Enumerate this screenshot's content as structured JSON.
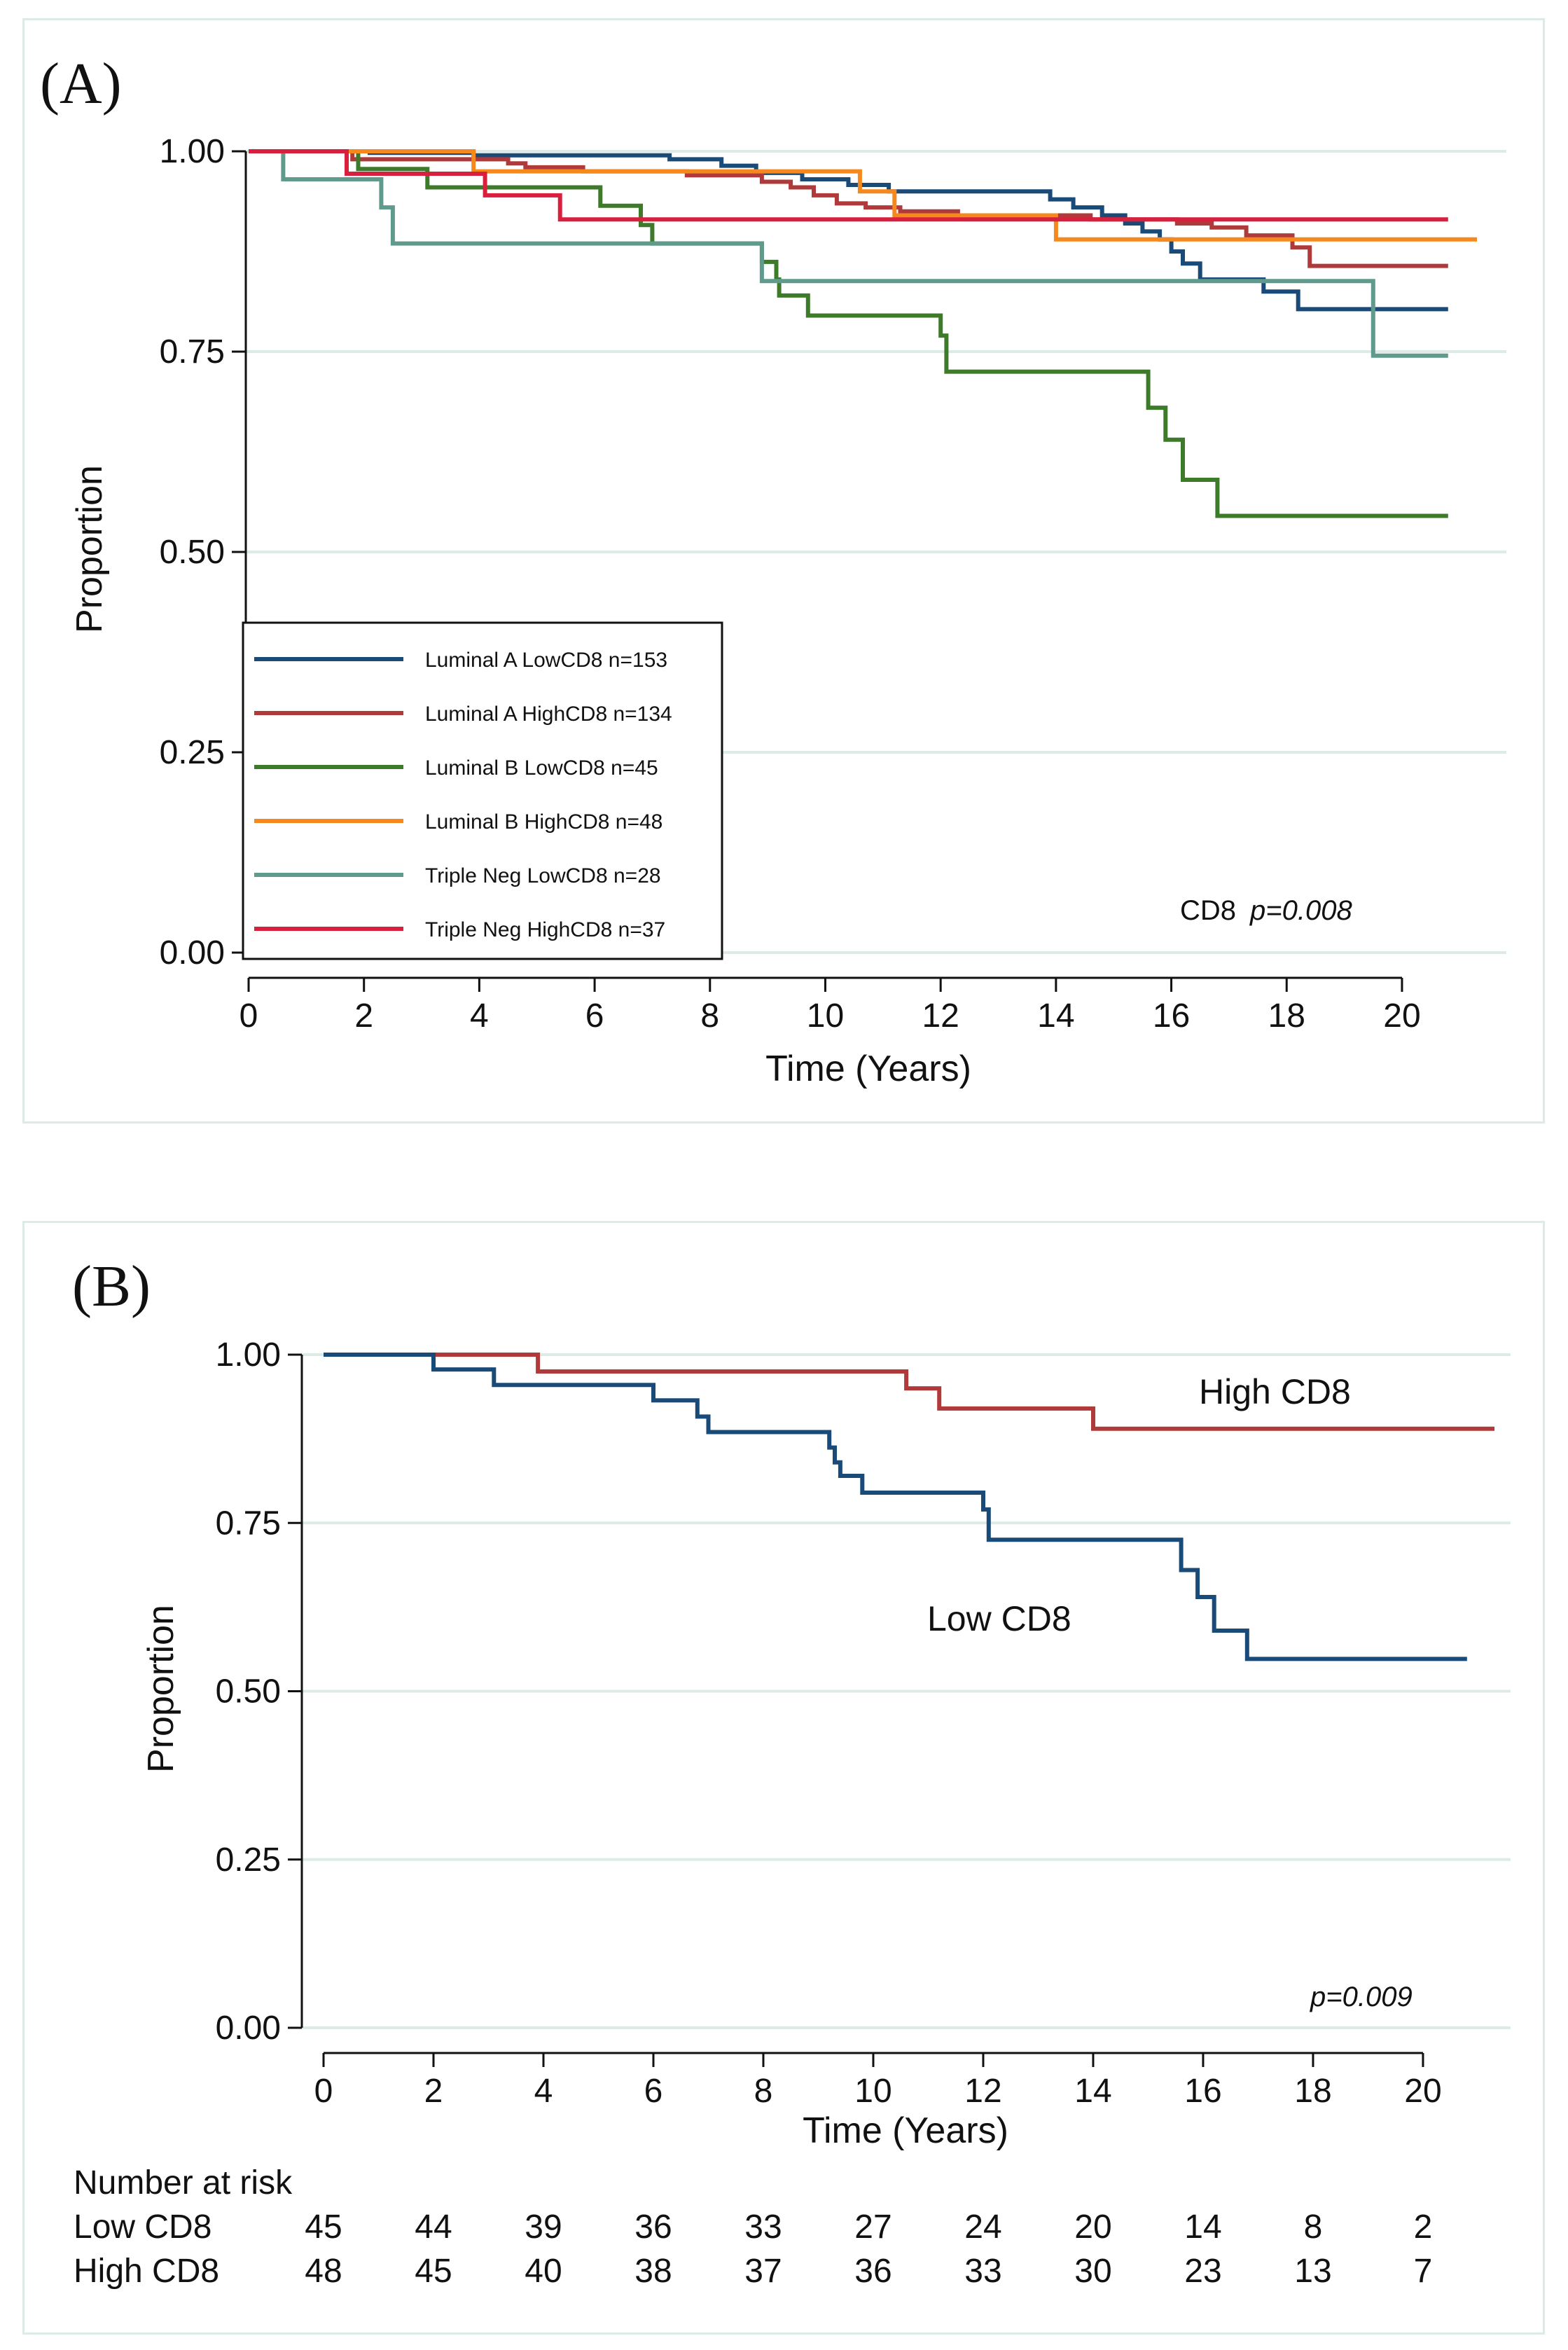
{
  "chart_data": [
    {
      "panel": "(A)",
      "type": "line",
      "subtype": "kaplan-meier",
      "xlabel": "Time (Years)",
      "ylabel": "Proportion",
      "xlim": [
        0,
        21.3
      ],
      "ylim": [
        0,
        1
      ],
      "xticks": [
        "0",
        "2",
        "4",
        "6",
        "8",
        "10",
        "12",
        "14",
        "16",
        "18",
        "20"
      ],
      "yticks": [
        "0.00",
        "0.25",
        "0.50",
        "0.75",
        "1.00"
      ],
      "grid": true,
      "legend_position": "bottom-left",
      "annotation": {
        "label": "CD8",
        "p": "p=0.008"
      },
      "series": [
        {
          "name": "Luminal A LowCD8 n=153",
          "color": "#1a4a78",
          "steps": [
            [
              0,
              1
            ],
            [
              2.1,
              0.998
            ],
            [
              3.9,
              0.995
            ],
            [
              7.3,
              0.99
            ],
            [
              8.2,
              0.982
            ],
            [
              8.8,
              0.973
            ],
            [
              9.6,
              0.965
            ],
            [
              10.4,
              0.958
            ],
            [
              11.1,
              0.95
            ],
            [
              13.9,
              0.94
            ],
            [
              14.3,
              0.93
            ],
            [
              14.8,
              0.92
            ],
            [
              15.2,
              0.91
            ],
            [
              15.5,
              0.9
            ],
            [
              15.8,
              0.89
            ],
            [
              16.0,
              0.875
            ],
            [
              16.2,
              0.86
            ],
            [
              16.5,
              0.84
            ],
            [
              17.6,
              0.825
            ],
            [
              18.2,
              0.803
            ],
            [
              20.8,
              0.803
            ]
          ]
        },
        {
          "name": "Luminal A HighCD8 n=134",
          "color": "#b03a3a",
          "steps": [
            [
              0,
              1
            ],
            [
              1.8,
              0.99
            ],
            [
              4.5,
              0.985
            ],
            [
              4.8,
              0.98
            ],
            [
              5.8,
              0.975
            ],
            [
              7.6,
              0.97
            ],
            [
              8.9,
              0.962
            ],
            [
              9.4,
              0.955
            ],
            [
              9.8,
              0.945
            ],
            [
              10.2,
              0.935
            ],
            [
              10.7,
              0.93
            ],
            [
              11.3,
              0.925
            ],
            [
              12.3,
              0.92
            ],
            [
              14.6,
              0.915
            ],
            [
              16.1,
              0.91
            ],
            [
              16.7,
              0.905
            ],
            [
              17.3,
              0.895
            ],
            [
              18.1,
              0.88
            ],
            [
              18.4,
              0.857
            ],
            [
              20.8,
              0.857
            ]
          ]
        },
        {
          "name": "Luminal B LowCD8 n=45",
          "color": "#3d7a2a",
          "steps": [
            [
              0,
              1
            ],
            [
              1.9,
              0.978
            ],
            [
              3.1,
              0.955
            ],
            [
              6.1,
              0.932
            ],
            [
              6.8,
              0.908
            ],
            [
              7.0,
              0.885
            ],
            [
              8.9,
              0.862
            ],
            [
              9.15,
              0.84
            ],
            [
              9.2,
              0.82
            ],
            [
              9.7,
              0.795
            ],
            [
              12.0,
              0.77
            ],
            [
              12.1,
              0.725
            ],
            [
              15.6,
              0.68
            ],
            [
              15.9,
              0.64
            ],
            [
              16.2,
              0.59
            ],
            [
              16.8,
              0.545
            ],
            [
              20.8,
              0.545
            ]
          ]
        },
        {
          "name": "Luminal B HighCD8 n=48",
          "color": "#f5891e",
          "steps": [
            [
              0,
              1
            ],
            [
              3.9,
              0.975
            ],
            [
              10.6,
              0.95
            ],
            [
              11.2,
              0.92
            ],
            [
              14.0,
              0.89
            ],
            [
              21.3,
              0.89
            ]
          ]
        },
        {
          "name": "Triple Neg LowCD8 n=28",
          "color": "#5f9a8c",
          "steps": [
            [
              0,
              1
            ],
            [
              0.6,
              0.965
            ],
            [
              2.3,
              0.93
            ],
            [
              2.5,
              0.885
            ],
            [
              8.9,
              0.838
            ],
            [
              19.5,
              0.745
            ],
            [
              20.8,
              0.745
            ]
          ]
        },
        {
          "name": "Triple Neg HighCD8 n=37",
          "color": "#d81f3e",
          "steps": [
            [
              0,
              1
            ],
            [
              1.7,
              0.972
            ],
            [
              3.2,
              0.972
            ],
            [
              4.1,
              0.945
            ],
            [
              5.4,
              0.915
            ],
            [
              20.8,
              0.915
            ]
          ]
        }
      ]
    },
    {
      "panel": "(B)",
      "type": "line",
      "subtype": "kaplan-meier",
      "xlabel": "Time (Years)",
      "ylabel": "Proportion",
      "xlim": [
        0,
        21.3
      ],
      "ylim": [
        0,
        1
      ],
      "xticks": [
        "0",
        "2",
        "4",
        "6",
        "8",
        "10",
        "12",
        "14",
        "16",
        "18",
        "20"
      ],
      "yticks": [
        "0.00",
        "0.25",
        "0.50",
        "0.75",
        "1.00"
      ],
      "grid": true,
      "annotation": {
        "p": "p=0.009"
      },
      "series": [
        {
          "name": "High CD8",
          "color": "#b03a3a",
          "steps": [
            [
              0,
              1
            ],
            [
              3.9,
              0.975
            ],
            [
              10.6,
              0.95
            ],
            [
              11.2,
              0.92
            ],
            [
              14.0,
              0.89
            ],
            [
              21.3,
              0.89
            ]
          ]
        },
        {
          "name": "Low CD8",
          "color": "#1a4a78",
          "steps": [
            [
              0,
              1
            ],
            [
              2.0,
              0.978
            ],
            [
              3.1,
              0.955
            ],
            [
              6.0,
              0.932
            ],
            [
              6.8,
              0.908
            ],
            [
              7.0,
              0.885
            ],
            [
              9.2,
              0.862
            ],
            [
              9.3,
              0.84
            ],
            [
              9.4,
              0.82
            ],
            [
              9.8,
              0.795
            ],
            [
              12.0,
              0.77
            ],
            [
              12.1,
              0.725
            ],
            [
              15.6,
              0.68
            ],
            [
              15.9,
              0.64
            ],
            [
              16.2,
              0.59
            ],
            [
              16.8,
              0.548
            ],
            [
              20.8,
              0.548
            ]
          ]
        }
      ],
      "risk_table": {
        "title": "Number at risk",
        "rows": [
          {
            "label": "Low CD8",
            "values": [
              "45",
              "44",
              "39",
              "36",
              "33",
              "27",
              "24",
              "20",
              "14",
              "8",
              "2"
            ]
          },
          {
            "label": "High CD8",
            "values": [
              "48",
              "45",
              "40",
              "38",
              "37",
              "36",
              "33",
              "30",
              "23",
              "13",
              "7"
            ]
          }
        ]
      }
    }
  ]
}
